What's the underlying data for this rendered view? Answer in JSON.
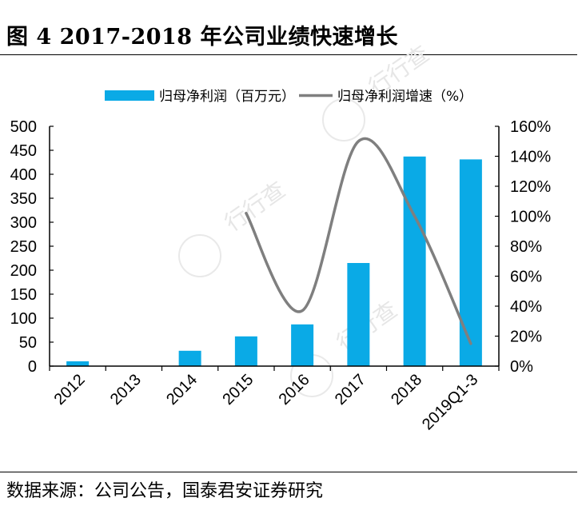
{
  "figure": {
    "title": "图 4   2017-2018 年公司业绩快速增长",
    "source": "数据来源：公司公告，国泰君安证券研究"
  },
  "colors": {
    "bar": "#0aaae6",
    "line": "#7f7f7f",
    "axis": "#000000"
  },
  "chart_data": {
    "type": "bar",
    "categories": [
      "2012",
      "2013",
      "2014",
      "2015",
      "2016",
      "2017",
      "2018",
      "2019Q1-3"
    ],
    "series": [
      {
        "name": "归母净利润（百万元）",
        "type": "bar",
        "axis": "left",
        "values": [
          10,
          0,
          32,
          62,
          87,
          215,
          437,
          431
        ]
      },
      {
        "name": "归母净利润增速（%）",
        "type": "line",
        "axis": "right",
        "smooth": true,
        "values": [
          null,
          null,
          null,
          102,
          37,
          150,
          100,
          15
        ]
      }
    ],
    "left_axis": {
      "ticks": [
        "0",
        "50",
        "100",
        "150",
        "200",
        "250",
        "300",
        "350",
        "400",
        "450",
        "500"
      ],
      "ylim": [
        0,
        500
      ]
    },
    "right_axis": {
      "ticks": [
        "0%",
        "20%",
        "40%",
        "60%",
        "80%",
        "100%",
        "120%",
        "140%",
        "160%"
      ],
      "ylim": [
        0,
        160
      ]
    },
    "legend_position": "top",
    "grid": false
  }
}
